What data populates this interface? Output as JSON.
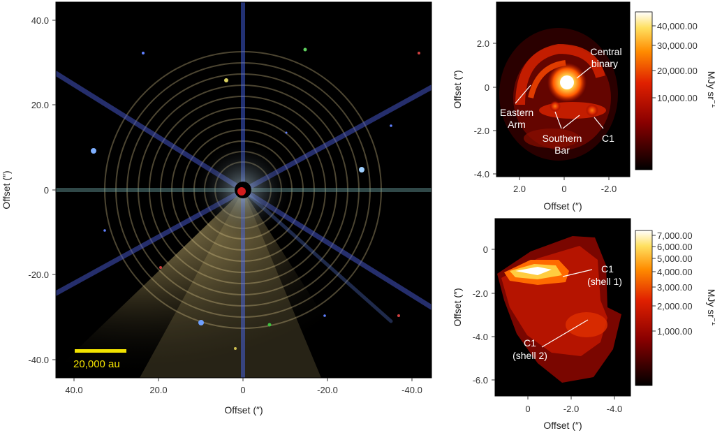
{
  "panel_a": {
    "x_ticks": [
      "40.0",
      "20.0",
      "0",
      "-20.0",
      "-40.0"
    ],
    "y_ticks": [
      "40.0",
      "20.0",
      "0",
      "-20.0",
      "-40.0"
    ],
    "xlabel": "Offset (″)",
    "ylabel": "Offset (″)",
    "scale_bar_label": "20,000 au",
    "scale_bar_color": "#f2e300"
  },
  "panel_b": {
    "x_ticks": [
      "2.0",
      "0",
      "-2.0"
    ],
    "y_ticks": [
      "2.0",
      "0",
      "-2.0",
      "-4.0"
    ],
    "xlabel": "Offset (″)",
    "ylabel": "Offset (″)",
    "annotations": {
      "central_binary": [
        "Central",
        "binary"
      ],
      "eastern_arm": [
        "Eastern",
        "Arm"
      ],
      "southern_bar": [
        "Southern",
        "Bar"
      ],
      "c1": "C1"
    },
    "colorbar": {
      "ticks": [
        "40,000.00",
        "30,000.00",
        "20,000.00",
        "10,000.00"
      ],
      "label": "MJy sr",
      "label_sup": "−1"
    }
  },
  "panel_c": {
    "x_ticks": [
      "0",
      "-2.0",
      "-4.0"
    ],
    "y_ticks": [
      "0",
      "-2.0",
      "-4.0",
      "-6.0"
    ],
    "xlabel": "Offset (″)",
    "ylabel": "Offset (″)",
    "annotations": {
      "c1_shell1": [
        "C1",
        "(shell 1)"
      ],
      "c1_shell2": [
        "C1",
        "(shell 2)"
      ]
    },
    "colorbar": {
      "ticks": [
        "7,000.00",
        "6,000.00",
        "5,000.00",
        "4,000.00",
        "3,000.00",
        "2,000.00",
        "1,000.00"
      ],
      "label": "MJy sr",
      "label_sup": "−1"
    }
  },
  "colors": {
    "background": "#000000",
    "heat_low": "#2a0000",
    "heat_mid": "#e02000",
    "heat_high": "#ffffff"
  }
}
